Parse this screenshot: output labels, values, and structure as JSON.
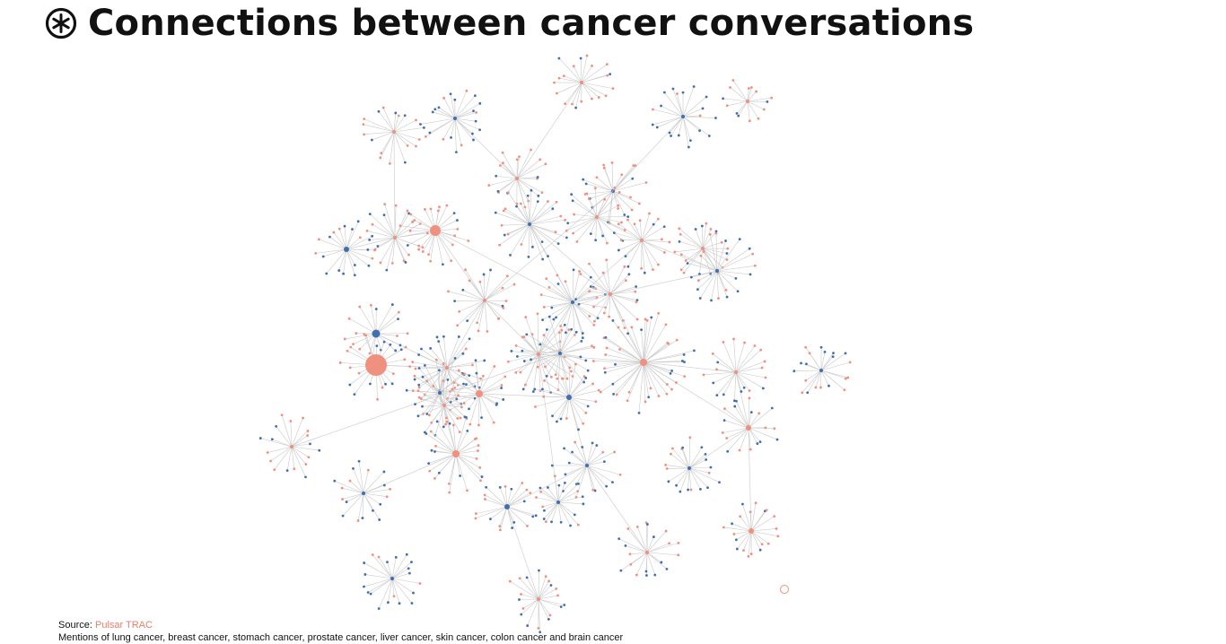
{
  "header": {
    "title": "Connections between cancer conversations",
    "logo_icon": "pulsar-asterisk-logo-icon"
  },
  "footer": {
    "source_label": "Source:",
    "source_link": "Pulsar TRAC",
    "note": "Mentions of lung cancer, breast cancer, stomach cancer, prostate cancer, liver cancer, skin cancer, colon cancer and brain cancer"
  },
  "colors": {
    "salmon": "#f0907f",
    "blue": "#3f6fb0",
    "edge": "#c9c9c9",
    "text": "#111111"
  },
  "chart_data": {
    "type": "network",
    "node_colors": [
      "salmon",
      "blue"
    ],
    "clusters_visible": 40
  }
}
